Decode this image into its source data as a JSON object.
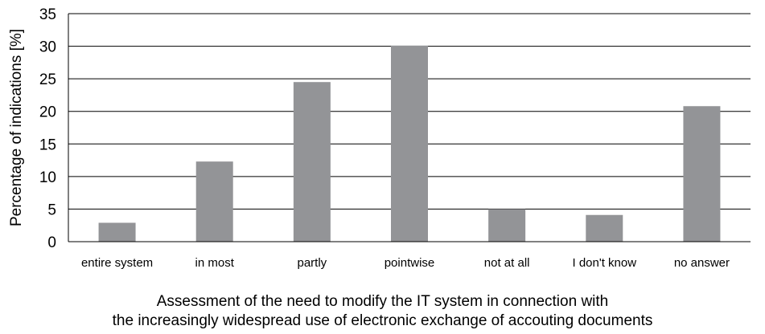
{
  "chart_data": {
    "type": "bar",
    "categories": [
      "entire system",
      "in most",
      "partly",
      "pointwise",
      "not at all",
      "I don't know",
      "no answer"
    ],
    "values": [
      2.9,
      12.3,
      24.5,
      30.1,
      5.0,
      4.1,
      20.8
    ],
    "title": "",
    "xlabel_lines": [
      "Assessment of the need to modify the IT system in connection with",
      "the increasingly widespread use of electronic exchange of accouting documents"
    ],
    "ylabel": "Percentage of indications [%]",
    "ylim": [
      0,
      35
    ],
    "yticks": [
      0,
      5,
      10,
      15,
      20,
      25,
      30,
      35
    ],
    "grid": true,
    "legend": "none",
    "colors": {
      "bar": "#939497",
      "grid": "#000000",
      "axis": "#000000"
    }
  }
}
